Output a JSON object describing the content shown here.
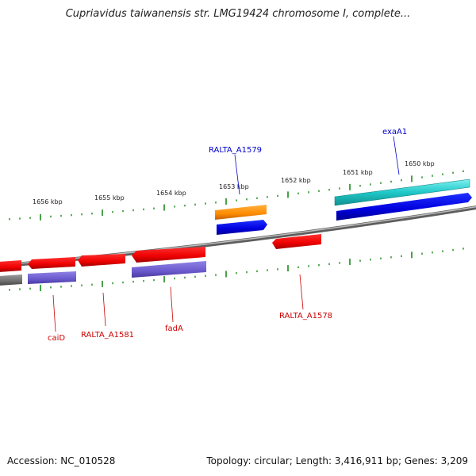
{
  "header": {
    "title": "Cupriavidus taiwanensis str. LMG19424 chromosome I, complete..."
  },
  "footer": {
    "accession": "Accession: NC_010528",
    "topology": "Topology: circular; Length: 3,416,911 bp; Genes: 3,209"
  },
  "scale": {
    "labels": [
      "1656 kbp",
      "1655 kbp",
      "1654 kbp",
      "1653 kbp",
      "1652 kbp",
      "1651 kbp",
      "1650 kbp"
    ]
  },
  "genes": {
    "labels": [
      "exaA1",
      "RALTA_A1579",
      "caiD",
      "RALTA_A1581",
      "fadA",
      "RALTA_A1578"
    ]
  },
  "colors": {
    "forward_label": "#0000cc",
    "reverse_label": "#cc0000",
    "tick": "#1a8a1a",
    "backbone": "#7a7a7a"
  }
}
